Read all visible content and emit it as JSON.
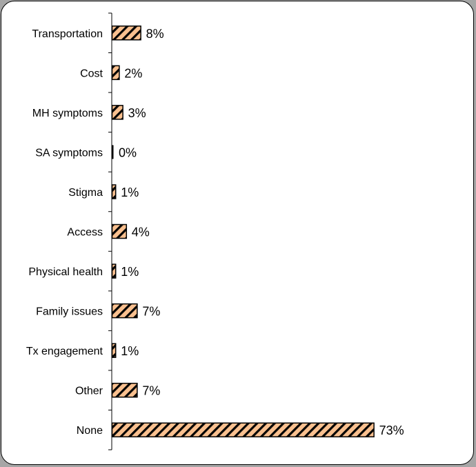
{
  "chart_data": {
    "type": "bar",
    "orientation": "horizontal",
    "categories": [
      "Transportation",
      "Cost",
      "MH symptoms",
      "SA symptoms",
      "Stigma",
      "Access",
      "Physical health",
      "Family issues",
      "Tx engagement",
      "Other",
      "None"
    ],
    "values": [
      8,
      2,
      3,
      0,
      1,
      4,
      1,
      7,
      1,
      7,
      73
    ],
    "value_labels": [
      "8%",
      "2%",
      "3%",
      "0%",
      "1%",
      "4%",
      "1%",
      "7%",
      "1%",
      "7%",
      "73%"
    ],
    "title": "",
    "xlabel": "",
    "ylabel": "",
    "xlim": [
      0,
      100
    ],
    "grid": false,
    "legend": "none",
    "bar_fill": "#f9c08f",
    "bar_hatch": "#000000",
    "bar_border": "#000000"
  }
}
